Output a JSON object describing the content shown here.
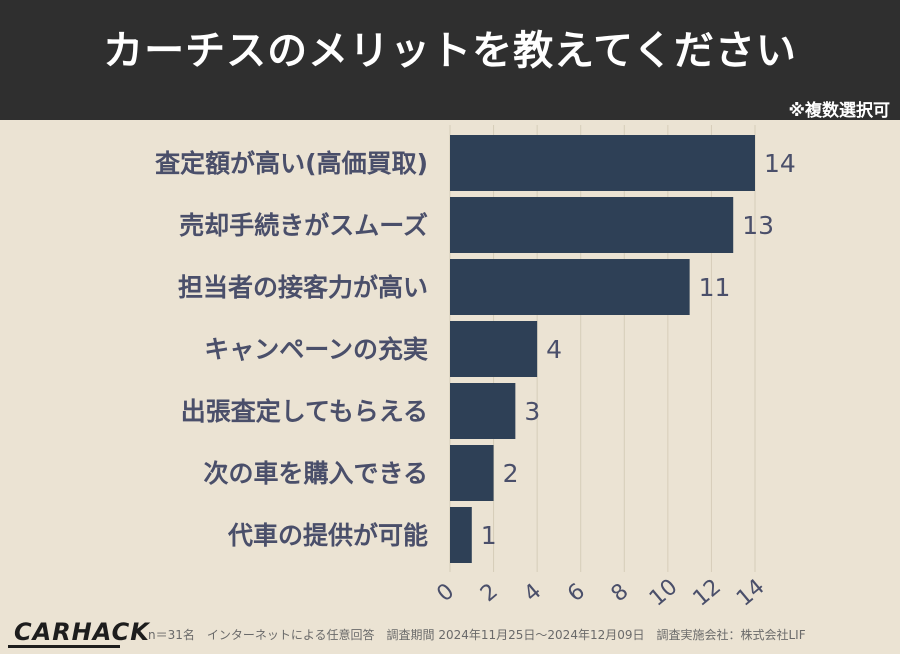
{
  "header": {
    "title": "カーチスのメリットを教えてください"
  },
  "note": "※複数選択可",
  "footer": {
    "logo": "CARHACK",
    "footnote": "n＝31名　インターネットによる任意回答　調査期間 2024年11月25日〜2024年12月09日　調査実施会社：株式会社LIF"
  },
  "colors": {
    "bar": "#2e4056",
    "label": "#4a4f6a",
    "background": "#ebe3d3",
    "header": "#2f2f2f"
  },
  "chart_data": {
    "type": "bar",
    "orientation": "horizontal",
    "categories": [
      "査定額が高い(高価買取)",
      "売却手続きがスムーズ",
      "担当者の接客力が高い",
      "キャンペーンの充実",
      "出張査定してもらえる",
      "次の車を購入できる",
      "代車の提供が可能"
    ],
    "values": [
      14,
      13,
      11,
      4,
      3,
      2,
      1
    ],
    "xlim": [
      0,
      14
    ],
    "xticks": [
      0,
      2,
      4,
      6,
      8,
      10,
      12,
      14
    ],
    "grid": true,
    "legend": "none"
  }
}
